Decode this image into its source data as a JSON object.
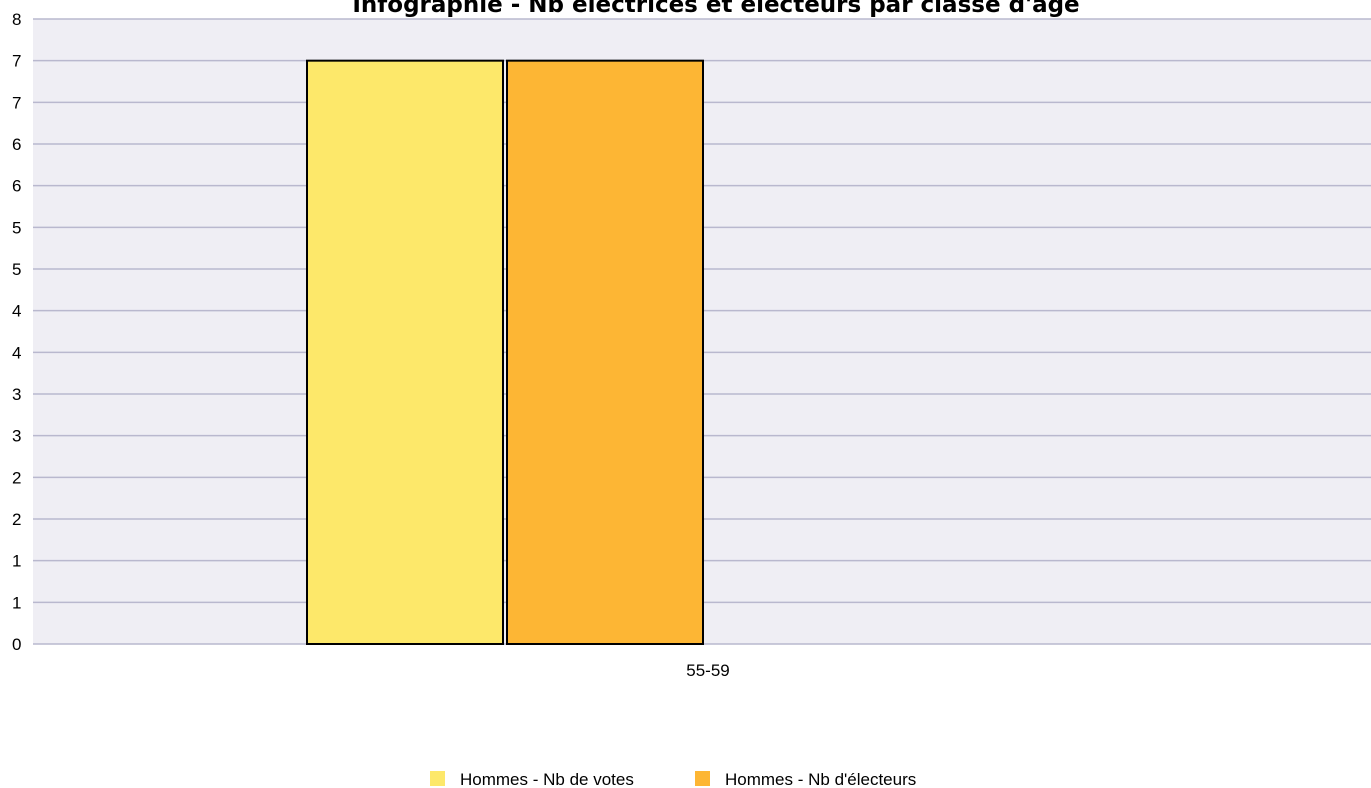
{
  "chart_data": {
    "type": "bar",
    "title": "Infographie - Nb électrices et électeurs par classe d'âge",
    "categories": [
      "55-59"
    ],
    "series": [
      {
        "name": "Hommes - Nb de votes",
        "values": [
          7
        ],
        "color": "#FDE86A"
      },
      {
        "name": "Hommes - Nb d'électeurs",
        "values": [
          7
        ],
        "color": "#FDB634"
      }
    ],
    "y_tick_labels": [
      "0",
      "1",
      "1",
      "2",
      "2",
      "3",
      "3",
      "4",
      "4",
      "5",
      "5",
      "6",
      "6",
      "7",
      "7",
      "8"
    ],
    "ylim": [
      0,
      7.5
    ],
    "grid": true,
    "legend_position": "bottom-center",
    "colors": {
      "plot_background": "#EFEEF4",
      "grid_line": "#B9B8CE",
      "bar_border": "#000000"
    }
  }
}
